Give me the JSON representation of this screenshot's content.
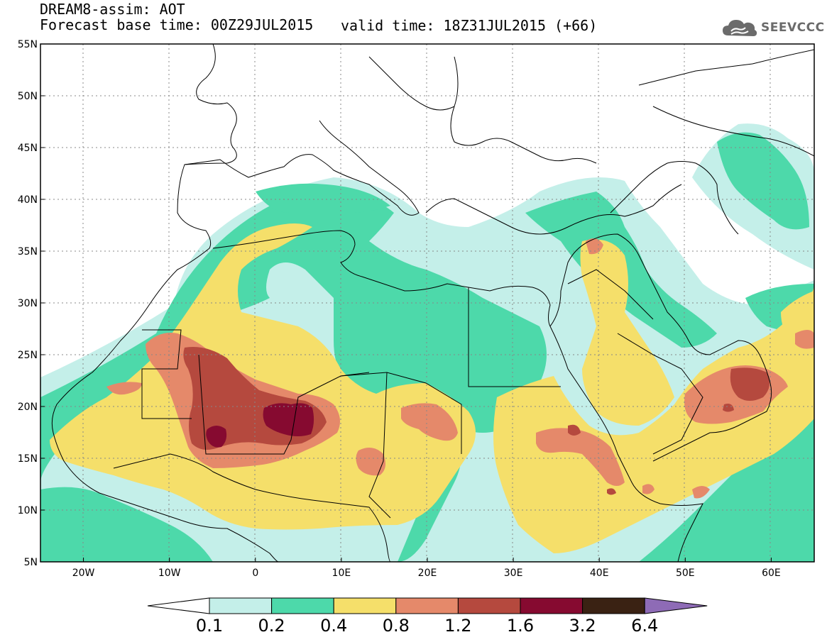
{
  "header": {
    "line1": "DREAM8-assim: AOT",
    "line2": "Forecast base time: 00Z29JUL2015",
    "valid": "valid time: 18Z31JUL2015 (+66)"
  },
  "logo": {
    "text": "SEEVCCC",
    "icon": "cloud-icon"
  },
  "map": {
    "lon_range": [
      -25,
      65
    ],
    "lat_range": [
      5,
      55
    ],
    "x_ticks": [
      "20W",
      "10W",
      "0",
      "10E",
      "20E",
      "30E",
      "40E",
      "50E",
      "60E"
    ],
    "y_ticks": [
      "55N",
      "50N",
      "45N",
      "40N",
      "35N",
      "30N",
      "25N",
      "20N",
      "15N",
      "10N",
      "5N"
    ],
    "gridlines": "dotted",
    "background_color": "#ffffff",
    "boundary_color": "#000000"
  },
  "colorbar": {
    "levels": [
      "0.1",
      "0.2",
      "0.4",
      "0.8",
      "1.2",
      "1.6",
      "3.2",
      "6.4"
    ],
    "colors": [
      "#c4efe9",
      "#4dd9aa",
      "#f5df6a",
      "#e5896a",
      "#b5493e",
      "#860a30",
      "#3a2213",
      "#8e6bb6"
    ],
    "under_color": "#ffffff"
  }
}
